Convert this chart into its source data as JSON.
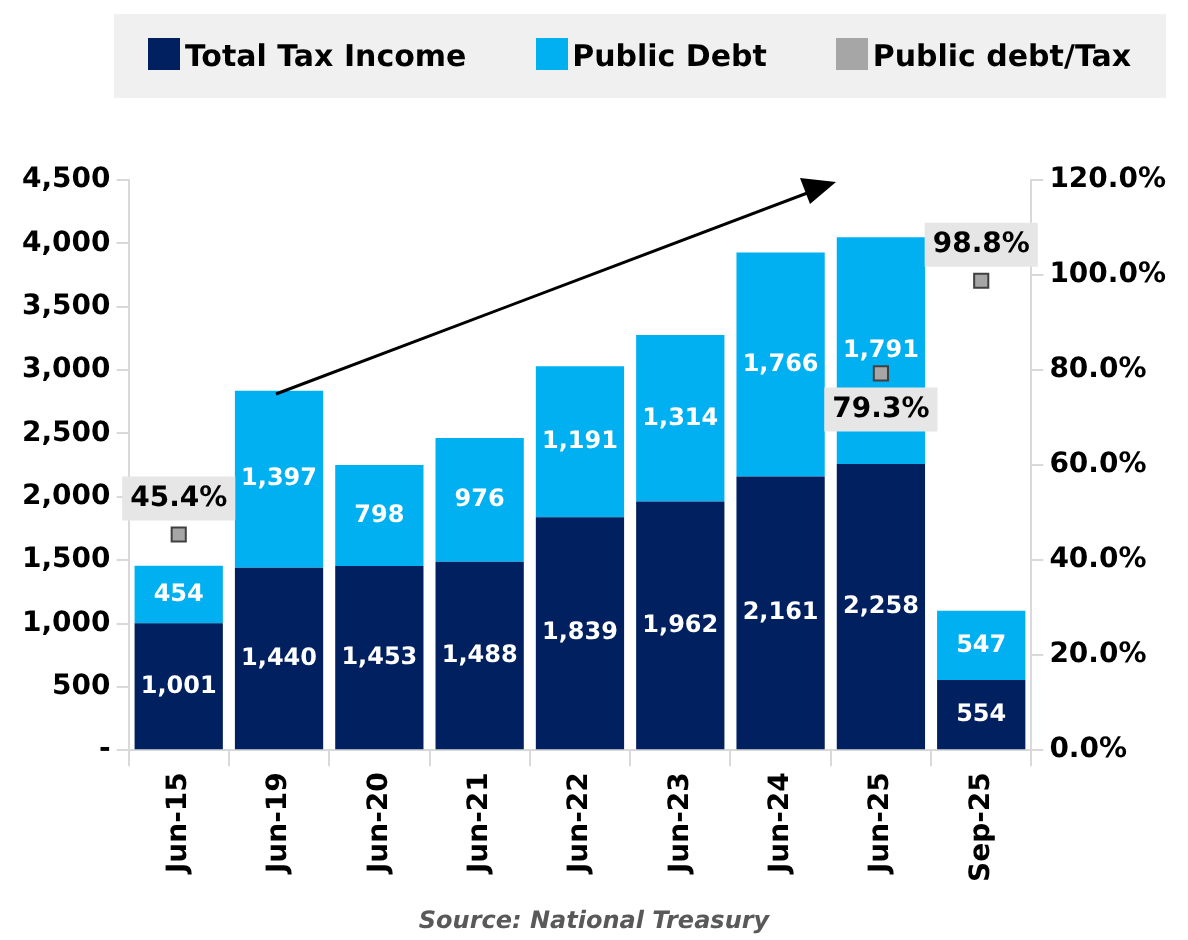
{
  "chart_data": {
    "type": "bar",
    "stacked": true,
    "categories": [
      "Jun-15",
      "Jun-19",
      "Jun-20",
      "Jun-21",
      "Jun-22",
      "Jun-23",
      "Jun-24",
      "Jun-25",
      "Sep-25"
    ],
    "series": [
      {
        "name": "Total Tax Income",
        "color": "#002060",
        "values": [
          1001,
          1440,
          1453,
          1488,
          1839,
          1962,
          2161,
          2258,
          554
        ],
        "value_labels": [
          "1,001",
          "1,440",
          "1,453",
          "1,488",
          "1,839",
          "1,962",
          "2,161",
          "2,258",
          "554"
        ]
      },
      {
        "name": "Public Debt",
        "color": "#00b0f0",
        "values": [
          454,
          1397,
          798,
          976,
          1191,
          1314,
          1766,
          1791,
          547
        ],
        "value_labels": [
          "454",
          "1,397",
          "798",
          "976",
          "1,191",
          "1,314",
          "1,766",
          "1,791",
          "547"
        ]
      },
      {
        "name": "Public debt/Tax",
        "type": "scatter",
        "axis": "y2",
        "color": "#a6a6a6",
        "marker": "square",
        "values": [
          45.4,
          null,
          null,
          null,
          null,
          null,
          null,
          79.3,
          98.8
        ],
        "value_labels": [
          "45.4%",
          null,
          null,
          null,
          null,
          null,
          null,
          "79.3%",
          "98.8%"
        ]
      }
    ],
    "ylim": [
      0,
      4500
    ],
    "yticks": [
      {
        "value": 0,
        "label": "-"
      },
      {
        "value": 500,
        "label": "500"
      },
      {
        "value": 1000,
        "label": "1,000"
      },
      {
        "value": 1500,
        "label": "1,500"
      },
      {
        "value": 2000,
        "label": "2,000"
      },
      {
        "value": 2500,
        "label": "2,500"
      },
      {
        "value": 3000,
        "label": "3,000"
      },
      {
        "value": 3500,
        "label": "3,500"
      },
      {
        "value": 4000,
        "label": "4,000"
      },
      {
        "value": 4500,
        "label": "4,500"
      }
    ],
    "y2lim": [
      0,
      120
    ],
    "y2ticks": [
      {
        "value": 0,
        "label": "0.0%"
      },
      {
        "value": 20,
        "label": "20.0%"
      },
      {
        "value": 40,
        "label": "40.0%"
      },
      {
        "value": 60,
        "label": "60.0%"
      },
      {
        "value": 80,
        "label": "80.0%"
      },
      {
        "value": 100,
        "label": "100.0%"
      },
      {
        "value": 120,
        "label": "120.0%"
      }
    ],
    "grid": false,
    "legend": "top",
    "annotations": [
      "Source: National Treasury"
    ]
  }
}
